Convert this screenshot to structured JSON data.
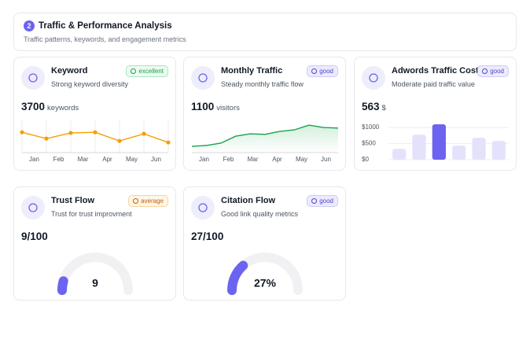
{
  "header": {
    "badge": "2",
    "title": "Traffic & Performance Analysis",
    "subtitle": "Traffic patterns, keywords, and engagement metrics"
  },
  "cards": [
    {
      "title": "Keyword",
      "status": "excellent",
      "description": "Strong keyword diversity",
      "value": 3700,
      "unit": "keywords",
      "chart": {
        "type": "line",
        "x_labels": [
          "Jan",
          "Feb",
          "Mar",
          "Apr",
          "May",
          "Jun"
        ],
        "values": [
          68,
          47,
          66,
          68,
          39,
          63,
          34
        ],
        "color": "#f59e0b",
        "ylim": [
          0,
          100
        ],
        "grid": true
      }
    },
    {
      "title": "Monthly Traffic",
      "status": "good",
      "description": "Steady monthly traffic flow",
      "value": 1100,
      "unit": "visitors",
      "chart": {
        "type": "area",
        "x_labels": [
          "Jan",
          "Feb",
          "Mar",
          "Apr",
          "May",
          "Jun"
        ],
        "values": [
          21,
          24,
          32,
          55,
          63,
          61,
          71,
          76,
          92,
          84,
          82
        ],
        "color": "#16a34a",
        "ylim": [
          0,
          100
        ],
        "grid": false
      }
    },
    {
      "title": "Adwords Traffic Cost",
      "status": "good",
      "description": "Moderate paid traffic value",
      "value": 563,
      "unit": "$",
      "chart": {
        "type": "bar",
        "values": [
          340,
          780,
          1100,
          440,
          680,
          585
        ],
        "colors": [
          "#e4e2fb",
          "#e4e2fb",
          "#6c63f0",
          "#e4e2fb",
          "#e4e2fb",
          "#e4e2fb"
        ],
        "ylim": [
          0,
          1100
        ],
        "yticks": [
          {
            "value": 1000,
            "label": "$1000"
          },
          {
            "value": 500,
            "label": "$500"
          },
          {
            "value": 0,
            "label": "$0"
          }
        ],
        "grid": true
      }
    },
    {
      "title": "Trust Flow",
      "status": "average",
      "description": "Trust for trust improvment",
      "value": 9,
      "separator": "/",
      "max": 100,
      "chart": {
        "type": "gauge",
        "value_label": "9",
        "color": "#6c63f0"
      }
    },
    {
      "title": "Citation Flow",
      "status": "good",
      "description": "Good link quality metrics",
      "value": 27,
      "separator": "/",
      "max": 100,
      "chart": {
        "type": "gauge",
        "value_label": "27%",
        "color": "#6c63f0"
      }
    }
  ]
}
